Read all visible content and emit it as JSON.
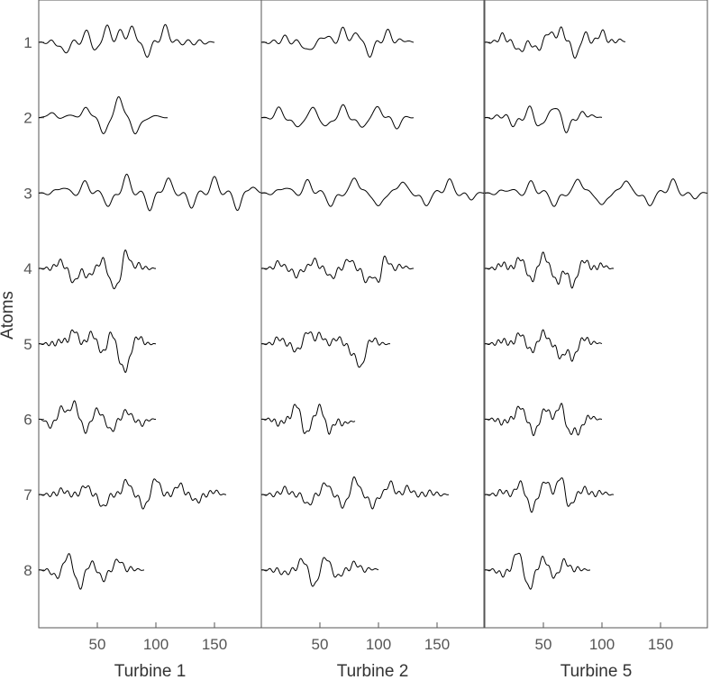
{
  "chart_data": {
    "type": "line",
    "ylabel": "Atoms",
    "row_labels": [
      "1",
      "2",
      "3",
      "4",
      "5",
      "6",
      "7",
      "8"
    ],
    "x_ticks": [
      50,
      100,
      150
    ],
    "xlim": [
      0,
      190
    ],
    "panels": [
      {
        "xlabel": "Turbine 1",
        "atoms": [
          {
            "row": "1",
            "length": 150,
            "peaks": [
              [
                22,
                -0.9
              ],
              [
                42,
                1
              ],
              [
                48,
                -0.9
              ],
              [
                58,
                1.3
              ],
              [
                70,
                0.9
              ],
              [
                80,
                1.2
              ],
              [
                92,
                -1.1
              ],
              [
                108,
                1.3
              ]
            ],
            "freq": 0.28
          },
          {
            "row": "2",
            "length": 110,
            "peaks": [
              [
                12,
                0.6
              ],
              [
                40,
                1.1
              ],
              [
                55,
                -1.5
              ],
              [
                68,
                1.9
              ],
              [
                82,
                -1.4
              ]
            ],
            "freq": 0.11
          },
          {
            "row": "3",
            "length": 190,
            "peaks": [
              [
                20,
                0.6
              ],
              [
                40,
                0.9
              ],
              [
                60,
                -1.1
              ],
              [
                75,
                1.4
              ],
              [
                95,
                -1.3
              ],
              [
                110,
                1.2
              ],
              [
                130,
                -1.1
              ],
              [
                150,
                1.2
              ],
              [
                170,
                -1.3
              ],
              [
                182,
                0.6
              ]
            ],
            "freq": 0.22
          },
          {
            "row": "4",
            "length": 100,
            "peaks": [
              [
                18,
                0.6
              ],
              [
                30,
                -1.2
              ],
              [
                42,
                -0.7
              ],
              [
                55,
                0.8
              ],
              [
                62,
                -1.2
              ],
              [
                68,
                -1.4
              ],
              [
                74,
                1.6
              ],
              [
                85,
                0.3
              ]
            ],
            "freq": 0.45
          },
          {
            "row": "5",
            "length": 100,
            "peaks": [
              [
                20,
                0.3
              ],
              [
                30,
                1.2
              ],
              [
                45,
                0.9
              ],
              [
                55,
                -0.8
              ],
              [
                62,
                1
              ],
              [
                70,
                -1.3
              ],
              [
                75,
                -1.8
              ],
              [
                85,
                0.6
              ]
            ],
            "freq": 0.5
          },
          {
            "row": "6",
            "length": 100,
            "peaks": [
              [
                10,
                -0.6
              ],
              [
                20,
                1
              ],
              [
                30,
                1.4
              ],
              [
                40,
                -1
              ],
              [
                50,
                0.8
              ],
              [
                62,
                -1
              ],
              [
                75,
                0.7
              ],
              [
                88,
                -0.4
              ]
            ],
            "freq": 0.45
          },
          {
            "row": "7",
            "length": 160,
            "peaks": [
              [
                20,
                0.4
              ],
              [
                40,
                0.8
              ],
              [
                55,
                -1.1
              ],
              [
                75,
                1.2
              ],
              [
                90,
                -1.1
              ],
              [
                100,
                1.4
              ],
              [
                120,
                0.9
              ],
              [
                135,
                -0.6
              ],
              [
                150,
                0.3
              ]
            ],
            "freq": 0.45
          },
          {
            "row": "8",
            "length": 90,
            "peaks": [
              [
                15,
                -0.6
              ],
              [
                25,
                1.3
              ],
              [
                35,
                -1.5
              ],
              [
                45,
                0.6
              ],
              [
                55,
                -0.8
              ],
              [
                68,
                0.9
              ],
              [
                80,
                0.1
              ]
            ],
            "freq": 0.42
          }
        ]
      },
      {
        "xlabel": "Turbine 2",
        "atoms": [
          {
            "row": "1",
            "length": 130,
            "peaks": [
              [
                20,
                0.4
              ],
              [
                40,
                -0.8
              ],
              [
                55,
                0.6
              ],
              [
                70,
                1.1
              ],
              [
                82,
                0.8
              ],
              [
                92,
                -1.1
              ],
              [
                108,
                0.9
              ],
              [
                122,
                0.2
              ]
            ],
            "freq": 0.28
          },
          {
            "row": "2",
            "length": 130,
            "peaks": [
              [
                15,
                0.7
              ],
              [
                30,
                -0.9
              ],
              [
                45,
                0.8
              ],
              [
                55,
                -0.9
              ],
              [
                70,
                0.9
              ],
              [
                85,
                -0.9
              ],
              [
                100,
                0.9
              ],
              [
                115,
                -0.8
              ]
            ],
            "freq": 0.2
          },
          {
            "row": "3",
            "length": 190,
            "peaks": [
              [
                20,
                0.6
              ],
              [
                40,
                1
              ],
              [
                60,
                -1.1
              ],
              [
                80,
                1.4
              ],
              [
                100,
                -1.3
              ],
              [
                120,
                1.1
              ],
              [
                140,
                -1.1
              ],
              [
                160,
                1.1
              ],
              [
                178,
                -0.5
              ]
            ],
            "freq": 0.22
          },
          {
            "row": "4",
            "length": 130,
            "peaks": [
              [
                15,
                0.5
              ],
              [
                30,
                -0.6
              ],
              [
                45,
                0.7
              ],
              [
                60,
                -0.8
              ],
              [
                75,
                0.8
              ],
              [
                90,
                -1.1
              ],
              [
                100,
                -1.4
              ],
              [
                105,
                1.2
              ],
              [
                120,
                0.2
              ]
            ],
            "freq": 0.42
          },
          {
            "row": "5",
            "length": 110,
            "peaks": [
              [
                15,
                0.5
              ],
              [
                30,
                -0.6
              ],
              [
                40,
                1.1
              ],
              [
                50,
                0.8
              ],
              [
                65,
                0.5
              ],
              [
                78,
                -0.8
              ],
              [
                85,
                -2
              ],
              [
                95,
                0.4
              ]
            ],
            "freq": 0.45
          },
          {
            "row": "6",
            "length": 80,
            "peaks": [
              [
                15,
                -0.4
              ],
              [
                30,
                1.3
              ],
              [
                38,
                -1.3
              ],
              [
                50,
                1.1
              ],
              [
                58,
                -1.1
              ],
              [
                70,
                -0.4
              ],
              [
                78,
                -0.2
              ]
            ],
            "freq": 0.5
          },
          {
            "row": "7",
            "length": 160,
            "peaks": [
              [
                20,
                0.5
              ],
              [
                40,
                -0.9
              ],
              [
                55,
                1
              ],
              [
                70,
                -1
              ],
              [
                80,
                1.4
              ],
              [
                95,
                -1
              ],
              [
                110,
                1
              ],
              [
                125,
                0.6
              ],
              [
                145,
                0.2
              ]
            ],
            "freq": 0.42
          },
          {
            "row": "8",
            "length": 100,
            "peaks": [
              [
                20,
                -0.3
              ],
              [
                35,
                0.9
              ],
              [
                45,
                -1.4
              ],
              [
                55,
                1.1
              ],
              [
                65,
                -0.6
              ],
              [
                80,
                0.6
              ],
              [
                95,
                0.1
              ]
            ],
            "freq": 0.42
          }
        ]
      },
      {
        "xlabel": "Turbine 5",
        "atoms": [
          {
            "row": "1",
            "length": 120,
            "peaks": [
              [
                15,
                0.6
              ],
              [
                30,
                -0.8
              ],
              [
                45,
                -0.6
              ],
              [
                55,
                0.9
              ],
              [
                65,
                1.1
              ],
              [
                78,
                -1.3
              ],
              [
                85,
                0.8
              ],
              [
                100,
                0.9
              ],
              [
                115,
                0.2
              ]
            ],
            "freq": 0.38
          },
          {
            "row": "2",
            "length": 100,
            "peaks": [
              [
                15,
                0.2
              ],
              [
                25,
                -0.6
              ],
              [
                40,
                1.1
              ],
              [
                45,
                -1.1
              ],
              [
                60,
                1
              ],
              [
                70,
                -1.1
              ],
              [
                85,
                0.4
              ],
              [
                95,
                0.1
              ]
            ],
            "freq": 0.3
          },
          {
            "row": "3",
            "length": 190,
            "peaks": [
              [
                20,
                0.4
              ],
              [
                40,
                0.9
              ],
              [
                60,
                -1.1
              ],
              [
                80,
                1.3
              ],
              [
                100,
                -1.2
              ],
              [
                120,
                1.2
              ],
              [
                140,
                -1.1
              ],
              [
                160,
                1.1
              ],
              [
                178,
                -0.4
              ]
            ],
            "freq": 0.22
          },
          {
            "row": "4",
            "length": 110,
            "peaks": [
              [
                15,
                0.4
              ],
              [
                30,
                0.9
              ],
              [
                40,
                -1
              ],
              [
                50,
                1.2
              ],
              [
                62,
                -1.2
              ],
              [
                75,
                -1.5
              ],
              [
                85,
                0.7
              ],
              [
                100,
                0.3
              ]
            ],
            "freq": 0.5
          },
          {
            "row": "5",
            "length": 100,
            "peaks": [
              [
                15,
                0.3
              ],
              [
                30,
                0.9
              ],
              [
                40,
                -0.6
              ],
              [
                50,
                1
              ],
              [
                65,
                -1.2
              ],
              [
                75,
                -1.3
              ],
              [
                85,
                0.5
              ],
              [
                95,
                0.1
              ]
            ],
            "freq": 0.5
          },
          {
            "row": "6",
            "length": 100,
            "peaks": [
              [
                15,
                -0.3
              ],
              [
                30,
                1.1
              ],
              [
                42,
                -1.2
              ],
              [
                52,
                0.9
              ],
              [
                65,
                1.3
              ],
              [
                72,
                -1.2
              ],
              [
                80,
                -1.1
              ],
              [
                90,
                0.2
              ]
            ],
            "freq": 0.5
          },
          {
            "row": "7",
            "length": 110,
            "peaks": [
              [
                15,
                0.3
              ],
              [
                30,
                1
              ],
              [
                40,
                -1.3
              ],
              [
                52,
                1.2
              ],
              [
                65,
                1.6
              ],
              [
                72,
                -1.1
              ],
              [
                85,
                0.5
              ],
              [
                100,
                0.2
              ]
            ],
            "freq": 0.45
          },
          {
            "row": "8",
            "length": 90,
            "peaks": [
              [
                15,
                -0.4
              ],
              [
                28,
                1.6
              ],
              [
                38,
                -1.6
              ],
              [
                50,
                1
              ],
              [
                60,
                -0.6
              ],
              [
                68,
                0.8
              ],
              [
                80,
                0.1
              ]
            ],
            "freq": 0.45
          }
        ]
      }
    ]
  }
}
